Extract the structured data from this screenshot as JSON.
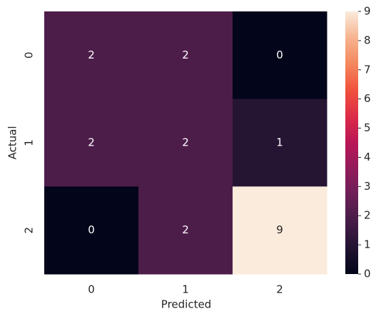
{
  "chart_data": {
    "type": "heatmap",
    "x_label": "Predicted",
    "y_label": "Actual",
    "x_categories": [
      "0",
      "1",
      "2"
    ],
    "y_categories": [
      "0",
      "1",
      "2"
    ],
    "values": [
      [
        2,
        2,
        0
      ],
      [
        2,
        2,
        1
      ],
      [
        0,
        2,
        9
      ]
    ],
    "zlim": [
      0,
      9
    ],
    "zticks": [
      0,
      1,
      2,
      3,
      4,
      5,
      6,
      7,
      8,
      9
    ],
    "colorscale": [
      "#03051a",
      "#221331",
      "#451c47",
      "#6b1f56",
      "#921c5b",
      "#b91657",
      "#dc2c48",
      "#f0513c",
      "#f4875e",
      "#f6b48f",
      "#faebdd"
    ],
    "annotate": true
  }
}
